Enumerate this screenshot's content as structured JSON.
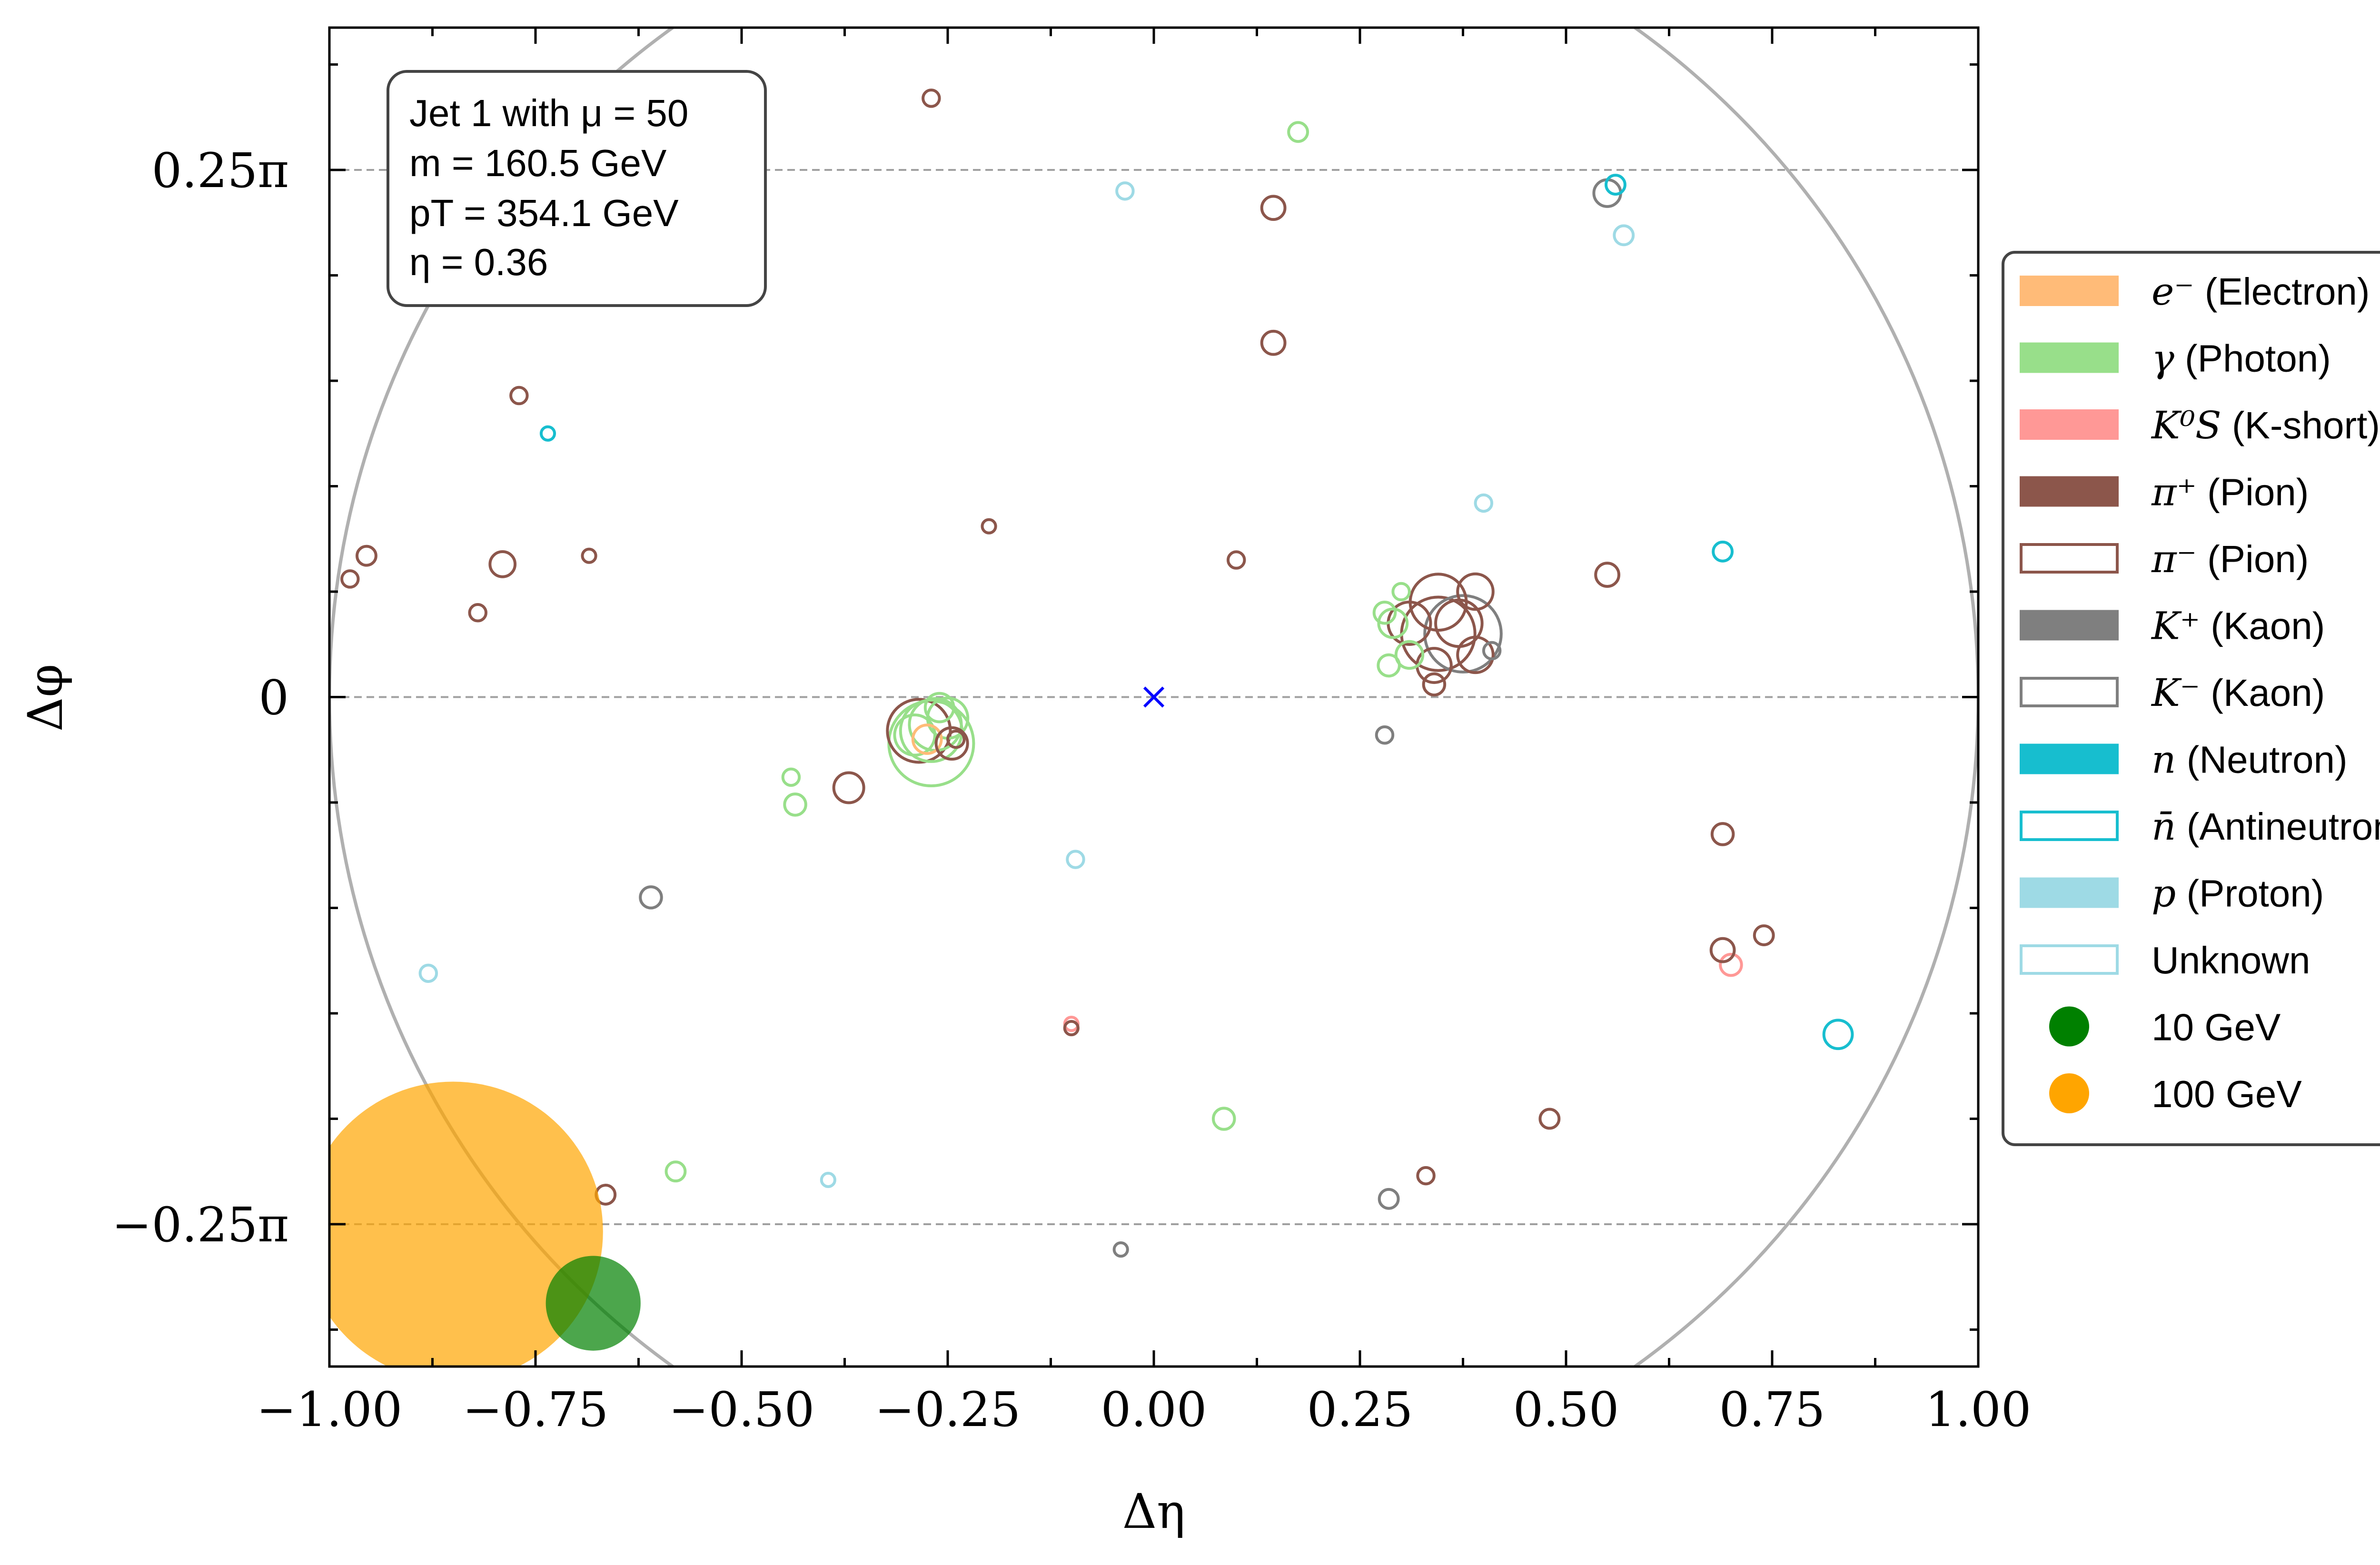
{
  "chart_data": {
    "type": "scatter",
    "title": "",
    "xlabel": "Δη",
    "ylabel": "Δφ",
    "xlim": [
      -1.0,
      1.0
    ],
    "ylim_over_pi": [
      -0.3175,
      0.3175
    ],
    "x_ticks": [
      {
        "v": -1.0,
        "label": "−1.00"
      },
      {
        "v": -0.75,
        "label": "−0.75"
      },
      {
        "v": -0.5,
        "label": "−0.50"
      },
      {
        "v": -0.25,
        "label": "−0.25"
      },
      {
        "v": 0.0,
        "label": "0.00"
      },
      {
        "v": 0.25,
        "label": "0.25"
      },
      {
        "v": 0.5,
        "label": "0.50"
      },
      {
        "v": 0.75,
        "label": "0.75"
      },
      {
        "v": 1.0,
        "label": "1.00"
      }
    ],
    "y_ticks": [
      {
        "v": 0.25,
        "label": "0.25π"
      },
      {
        "v": 0.0,
        "label": "0"
      },
      {
        "v": -0.25,
        "label": "−0.25π"
      }
    ],
    "grid": "horizontal dashed at labeled y ticks",
    "jet_axis_marker": {
      "x": 0.0,
      "y": 0.0,
      "color": "#0000ff"
    },
    "jet_cone_radius": 1.0,
    "info_box": {
      "line1": "Jet 1 with μ = 50",
      "line2": "m = 160.5 GeV",
      "line3": "pT = 354.1 GeV",
      "line4": "η = 0.36"
    },
    "legend": {
      "placement": "right, outside plot",
      "entries": [
        {
          "symbol": "e⁻",
          "label": " (Electron)",
          "color": "#ffbb78",
          "style": "filled"
        },
        {
          "symbol": "γ",
          "label": " (Photon)",
          "color": "#98df8a",
          "style": "filled"
        },
        {
          "symbol": "K⁰S",
          "label": " (K-short)",
          "color": "#ff9896",
          "style": "filled"
        },
        {
          "symbol": "π⁺",
          "label": " (Pion)",
          "color": "#8c564b",
          "style": "filled"
        },
        {
          "symbol": "π⁻",
          "label": " (Pion)",
          "color": "#8c564b",
          "style": "open"
        },
        {
          "symbol": "K⁺",
          "label": " (Kaon)",
          "color": "#7f7f7f",
          "style": "filled"
        },
        {
          "symbol": "K⁻",
          "label": " (Kaon)",
          "color": "#7f7f7f",
          "style": "open"
        },
        {
          "symbol": "n",
          "label": " (Neutron)",
          "color": "#17becf",
          "style": "filled"
        },
        {
          "symbol": "n̄",
          "label": " (Antineutron)",
          "color": "#17becf",
          "style": "open"
        },
        {
          "symbol": "p",
          "label": " (Proton)",
          "color": "#9edae5",
          "style": "filled"
        },
        {
          "symbol": "",
          "label": "Unknown",
          "color": "#9edae5",
          "style": "open"
        },
        {
          "symbol": "",
          "label": "10 GeV",
          "color": "#008000",
          "style": "dot"
        },
        {
          "symbol": "",
          "label": "100 GeV",
          "color": "#ffa500",
          "style": "dot"
        }
      ]
    },
    "species_colors": {
      "e": "#ffbb78",
      "g": "#98df8a",
      "ks": "#ff9896",
      "pi": "#8c564b",
      "k": "#7f7f7f",
      "n": "#17becf",
      "p": "#9edae5"
    },
    "energy_scale": [
      {
        "label": "10 GeV",
        "energy": 10,
        "x": -0.68,
        "y": -0.2875,
        "color": "#008000"
      },
      {
        "label": "100 GeV",
        "energy": 100,
        "x": -0.85,
        "y": -0.2535,
        "color": "#ffa500"
      }
    ],
    "particles": [
      {
        "x": -0.27,
        "y": 0.284,
        "s": "pi",
        "e": 0.3
      },
      {
        "x": 0.175,
        "y": 0.268,
        "s": "g",
        "e": 0.4
      },
      {
        "x": -0.035,
        "y": 0.24,
        "s": "p",
        "e": 0.3
      },
      {
        "x": 0.145,
        "y": 0.232,
        "s": "pi",
        "e": 0.6
      },
      {
        "x": 0.55,
        "y": 0.239,
        "s": "k",
        "e": 0.8
      },
      {
        "x": 0.56,
        "y": 0.243,
        "s": "n",
        "e": 0.4
      },
      {
        "x": 0.57,
        "y": 0.219,
        "s": "p",
        "e": 0.4
      },
      {
        "x": 0.145,
        "y": 0.168,
        "s": "pi",
        "e": 0.6
      },
      {
        "x": -0.77,
        "y": 0.143,
        "s": "pi",
        "e": 0.3
      },
      {
        "x": -0.735,
        "y": 0.125,
        "s": "n",
        "e": 0.2
      },
      {
        "x": -0.2,
        "y": 0.081,
        "s": "pi",
        "e": 0.2
      },
      {
        "x": 0.4,
        "y": 0.092,
        "s": "p",
        "e": 0.3
      },
      {
        "x": 0.69,
        "y": 0.069,
        "s": "n",
        "e": 0.4
      },
      {
        "x": -0.955,
        "y": 0.067,
        "s": "pi",
        "e": 0.4
      },
      {
        "x": -0.975,
        "y": 0.056,
        "s": "pi",
        "e": 0.3
      },
      {
        "x": -0.79,
        "y": 0.063,
        "s": "pi",
        "e": 0.7
      },
      {
        "x": -0.685,
        "y": 0.067,
        "s": "pi",
        "e": 0.2
      },
      {
        "x": -0.82,
        "y": 0.04,
        "s": "pi",
        "e": 0.3
      },
      {
        "x": 0.1,
        "y": 0.065,
        "s": "pi",
        "e": 0.3
      },
      {
        "x": 0.55,
        "y": 0.058,
        "s": "pi",
        "e": 0.6
      },
      {
        "x": 0.345,
        "y": 0.03,
        "s": "pi",
        "e": 6.0
      },
      {
        "x": 0.375,
        "y": 0.03,
        "s": "k",
        "e": 6.5
      },
      {
        "x": 0.345,
        "y": 0.045,
        "s": "pi",
        "e": 3.5
      },
      {
        "x": 0.37,
        "y": 0.035,
        "s": "pi",
        "e": 2.4
      },
      {
        "x": 0.31,
        "y": 0.035,
        "s": "pi",
        "e": 2.0
      },
      {
        "x": 0.39,
        "y": 0.05,
        "s": "pi",
        "e": 1.4
      },
      {
        "x": 0.39,
        "y": 0.02,
        "s": "pi",
        "e": 1.4
      },
      {
        "x": 0.34,
        "y": 0.015,
        "s": "pi",
        "e": 1.3
      },
      {
        "x": 0.29,
        "y": 0.035,
        "s": "g",
        "e": 0.9
      },
      {
        "x": 0.31,
        "y": 0.02,
        "s": "g",
        "e": 0.8
      },
      {
        "x": 0.28,
        "y": 0.04,
        "s": "g",
        "e": 0.5
      },
      {
        "x": 0.285,
        "y": 0.015,
        "s": "g",
        "e": 0.5
      },
      {
        "x": 0.3,
        "y": 0.05,
        "s": "g",
        "e": 0.3
      },
      {
        "x": 0.41,
        "y": 0.022,
        "s": "k",
        "e": 0.3
      },
      {
        "x": 0.34,
        "y": 0.006,
        "s": "pi",
        "e": 0.5
      },
      {
        "x": 0.28,
        "y": -0.018,
        "s": "k",
        "e": 0.3
      },
      {
        "x": -0.27,
        "y": -0.022,
        "s": "g",
        "e": 8.0
      },
      {
        "x": -0.285,
        "y": -0.016,
        "s": "pi",
        "e": 4.4
      },
      {
        "x": -0.27,
        "y": -0.016,
        "s": "g",
        "e": 4.2
      },
      {
        "x": -0.265,
        "y": -0.013,
        "s": "g",
        "e": 3.0
      },
      {
        "x": -0.25,
        "y": -0.01,
        "s": "g",
        "e": 1.8
      },
      {
        "x": -0.29,
        "y": -0.018,
        "s": "g",
        "e": 1.8
      },
      {
        "x": -0.275,
        "y": -0.02,
        "s": "e",
        "e": 0.9
      },
      {
        "x": -0.245,
        "y": -0.022,
        "s": "pi",
        "e": 1.1
      },
      {
        "x": -0.26,
        "y": -0.005,
        "s": "g",
        "e": 0.9
      },
      {
        "x": -0.24,
        "y": -0.02,
        "s": "pi",
        "e": 0.3
      },
      {
        "x": -0.37,
        "y": -0.043,
        "s": "pi",
        "e": 1.0
      },
      {
        "x": -0.44,
        "y": -0.038,
        "s": "g",
        "e": 0.3
      },
      {
        "x": -0.435,
        "y": -0.051,
        "s": "g",
        "e": 0.5
      },
      {
        "x": 0.69,
        "y": -0.065,
        "s": "pi",
        "e": 0.5
      },
      {
        "x": -0.095,
        "y": -0.077,
        "s": "p",
        "e": 0.3
      },
      {
        "x": -0.61,
        "y": -0.095,
        "s": "k",
        "e": 0.5
      },
      {
        "x": -0.88,
        "y": -0.131,
        "s": "p",
        "e": 0.3
      },
      {
        "x": 0.7,
        "y": -0.127,
        "s": "ks",
        "e": 0.5
      },
      {
        "x": 0.69,
        "y": -0.12,
        "s": "pi",
        "e": 0.6
      },
      {
        "x": 0.74,
        "y": -0.113,
        "s": "pi",
        "e": 0.4
      },
      {
        "x": -0.1,
        "y": -0.155,
        "s": "ks",
        "e": 0.2
      },
      {
        "x": -0.1,
        "y": -0.157,
        "s": "pi",
        "e": 0.2
      },
      {
        "x": 0.83,
        "y": -0.16,
        "s": "n",
        "e": 0.9
      },
      {
        "x": 0.085,
        "y": -0.2,
        "s": "g",
        "e": 0.5
      },
      {
        "x": 0.48,
        "y": -0.2,
        "s": "pi",
        "e": 0.4
      },
      {
        "x": -0.58,
        "y": -0.225,
        "s": "g",
        "e": 0.4
      },
      {
        "x": -0.395,
        "y": -0.229,
        "s": "p",
        "e": 0.2
      },
      {
        "x": 0.33,
        "y": -0.227,
        "s": "pi",
        "e": 0.3
      },
      {
        "x": -0.665,
        "y": -0.236,
        "s": "pi",
        "e": 0.4
      },
      {
        "x": 0.285,
        "y": -0.238,
        "s": "k",
        "e": 0.4
      },
      {
        "x": -0.04,
        "y": -0.262,
        "s": "k",
        "e": 0.2
      }
    ]
  }
}
